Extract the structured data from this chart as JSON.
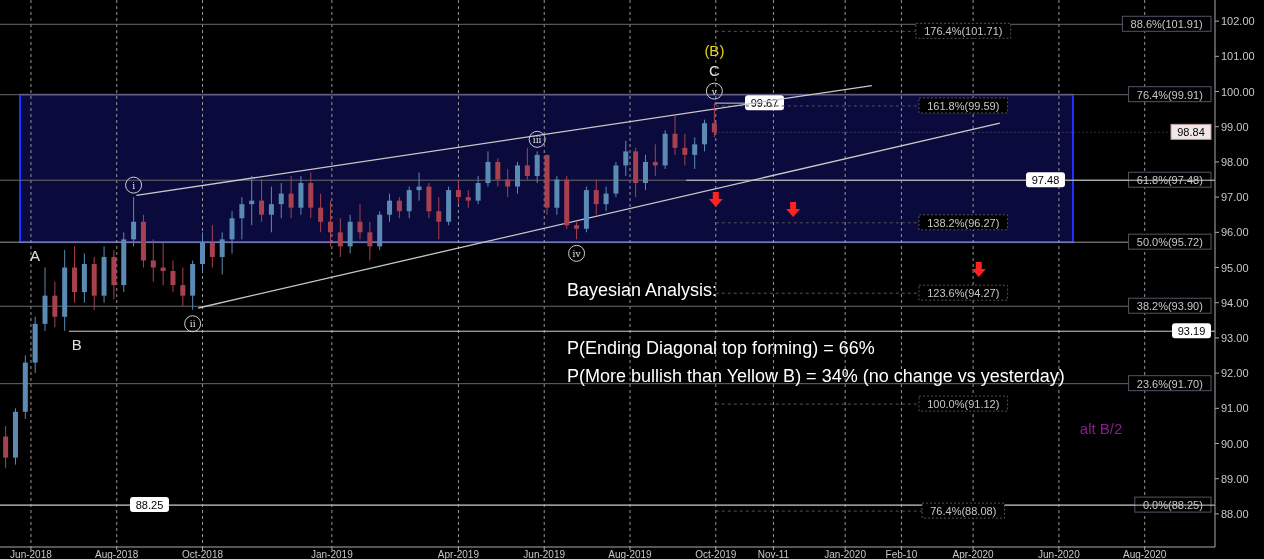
{
  "chart_data": {
    "type": "candlestick",
    "x": [
      "2018-05-14",
      "2018-05-21",
      "2018-05-28",
      "2018-06-04",
      "2018-06-11",
      "2018-06-18",
      "2018-06-25",
      "2018-07-02",
      "2018-07-09",
      "2018-07-16",
      "2018-07-23",
      "2018-07-30",
      "2018-08-06",
      "2018-08-13",
      "2018-08-20",
      "2018-08-27",
      "2018-09-03",
      "2018-09-10",
      "2018-09-17",
      "2018-09-24",
      "2018-10-01",
      "2018-10-08",
      "2018-10-15",
      "2018-10-22",
      "2018-10-29",
      "2018-11-05",
      "2018-11-12",
      "2018-11-19",
      "2018-11-26",
      "2018-12-03",
      "2018-12-10",
      "2018-12-17",
      "2018-12-24",
      "2018-12-31",
      "2019-01-07",
      "2019-01-14",
      "2019-01-21",
      "2019-01-28",
      "2019-02-04",
      "2019-02-11",
      "2019-02-18",
      "2019-02-25",
      "2019-03-04",
      "2019-03-11",
      "2019-03-18",
      "2019-03-25",
      "2019-04-01",
      "2019-04-08",
      "2019-04-15",
      "2019-04-22",
      "2019-04-29",
      "2019-05-06",
      "2019-05-13",
      "2019-05-20",
      "2019-05-27",
      "2019-06-03",
      "2019-06-10",
      "2019-06-17",
      "2019-06-24",
      "2019-07-01",
      "2019-07-08",
      "2019-07-15",
      "2019-07-22",
      "2019-07-29",
      "2019-08-05",
      "2019-08-12",
      "2019-08-19",
      "2019-08-26",
      "2019-09-02",
      "2019-09-09",
      "2019-09-16",
      "2019-09-23",
      "2019-09-30"
    ],
    "ohlc": [
      [
        90.2,
        90.5,
        89.3,
        89.6
      ],
      [
        89.6,
        91.0,
        89.4,
        90.9
      ],
      [
        90.9,
        92.5,
        90.7,
        92.3
      ],
      [
        92.3,
        93.6,
        92.0,
        93.4
      ],
      [
        93.4,
        95.0,
        93.2,
        94.2
      ],
      [
        94.2,
        94.6,
        93.3,
        93.6
      ],
      [
        93.6,
        95.5,
        93.2,
        95.0
      ],
      [
        95.0,
        95.6,
        94.0,
        94.3
      ],
      [
        94.3,
        95.4,
        94.0,
        95.1
      ],
      [
        95.1,
        95.3,
        93.8,
        94.2
      ],
      [
        94.2,
        95.6,
        94.0,
        95.3
      ],
      [
        95.3,
        95.5,
        94.1,
        94.5
      ],
      [
        94.5,
        96.0,
        94.3,
        95.8
      ],
      [
        95.8,
        97.0,
        95.6,
        96.3
      ],
      [
        96.3,
        96.5,
        95.0,
        95.2
      ],
      [
        95.2,
        95.8,
        94.6,
        95.0
      ],
      [
        95.0,
        95.7,
        94.5,
        94.9
      ],
      [
        94.9,
        95.2,
        94.3,
        94.5
      ],
      [
        94.5,
        95.0,
        93.9,
        94.2
      ],
      [
        94.2,
        95.2,
        93.8,
        95.1
      ],
      [
        95.1,
        96.0,
        94.9,
        95.7
      ],
      [
        95.7,
        96.2,
        95.0,
        95.3
      ],
      [
        95.3,
        96.0,
        94.8,
        95.8
      ],
      [
        95.8,
        96.6,
        95.4,
        96.4
      ],
      [
        96.4,
        97.0,
        95.8,
        96.8
      ],
      [
        96.8,
        97.6,
        96.2,
        96.9
      ],
      [
        96.9,
        97.5,
        96.3,
        96.5
      ],
      [
        96.5,
        97.3,
        96.0,
        96.8
      ],
      [
        96.8,
        97.4,
        96.4,
        97.1
      ],
      [
        97.1,
        97.6,
        96.4,
        96.7
      ],
      [
        96.7,
        97.6,
        96.5,
        97.4
      ],
      [
        97.4,
        97.7,
        96.4,
        96.7
      ],
      [
        96.7,
        97.1,
        96.0,
        96.3
      ],
      [
        96.3,
        96.9,
        95.6,
        96.0
      ],
      [
        96.0,
        96.4,
        95.3,
        95.6
      ],
      [
        95.6,
        96.5,
        95.4,
        96.3
      ],
      [
        96.3,
        96.8,
        95.8,
        96.0
      ],
      [
        96.0,
        96.3,
        95.2,
        95.6
      ],
      [
        95.6,
        96.6,
        95.5,
        96.5
      ],
      [
        96.5,
        97.1,
        96.3,
        96.9
      ],
      [
        96.9,
        97.0,
        96.4,
        96.6
      ],
      [
        96.6,
        97.3,
        96.4,
        97.2
      ],
      [
        97.2,
        97.7,
        96.9,
        97.3
      ],
      [
        97.3,
        97.4,
        96.4,
        96.6
      ],
      [
        96.6,
        97.0,
        95.8,
        96.3
      ],
      [
        96.3,
        97.3,
        96.2,
        97.2
      ],
      [
        97.2,
        97.5,
        96.8,
        97.0
      ],
      [
        97.0,
        97.2,
        96.7,
        96.9
      ],
      [
        96.9,
        97.6,
        96.8,
        97.4
      ],
      [
        97.4,
        98.3,
        97.3,
        98.0
      ],
      [
        98.0,
        98.1,
        97.3,
        97.5
      ],
      [
        97.5,
        97.8,
        97.0,
        97.3
      ],
      [
        97.3,
        98.0,
        97.1,
        97.9
      ],
      [
        97.9,
        98.4,
        97.5,
        97.6
      ],
      [
        97.6,
        98.3,
        97.4,
        98.2
      ],
      [
        98.2,
        98.2,
        96.5,
        96.7
      ],
      [
        96.7,
        97.6,
        96.5,
        97.5
      ],
      [
        97.5,
        97.6,
        96.1,
        96.2
      ],
      [
        96.2,
        96.3,
        95.8,
        96.1
      ],
      [
        96.1,
        97.3,
        96.0,
        97.2
      ],
      [
        97.2,
        97.5,
        96.5,
        96.8
      ],
      [
        96.8,
        97.3,
        96.6,
        97.1
      ],
      [
        97.1,
        98.0,
        97.0,
        97.9
      ],
      [
        97.9,
        98.6,
        97.6,
        98.3
      ],
      [
        98.3,
        98.4,
        97.0,
        97.4
      ],
      [
        97.4,
        98.2,
        97.2,
        98.0
      ],
      [
        98.0,
        98.5,
        97.6,
        97.9
      ],
      [
        97.9,
        98.9,
        97.8,
        98.8
      ],
      [
        98.8,
        99.3,
        98.2,
        98.4
      ],
      [
        98.4,
        98.8,
        97.9,
        98.2
      ],
      [
        98.2,
        98.7,
        97.8,
        98.5
      ],
      [
        98.5,
        99.2,
        98.3,
        99.1
      ],
      [
        99.1,
        99.67,
        98.7,
        98.84
      ]
    ],
    "series": [
      {
        "type": "line",
        "color": "#c8c8c8",
        "x": [
          "2018-08-15",
          "2020-01-20"
        ],
        "values": [
          97.05,
          100.17
        ]
      },
      {
        "type": "line",
        "color": "#c8c8c8",
        "x": [
          "2018-09-28",
          "2020-04-20"
        ],
        "values": [
          93.85,
          99.1
        ]
      }
    ],
    "xlim": [
      "2018-05-10",
      "2020-09-20"
    ],
    "xticks": [
      {
        "value": "2018-06-01",
        "label": "Jun-2018"
      },
      {
        "value": "2018-08-01",
        "label": "Aug-2018"
      },
      {
        "value": "2018-10-01",
        "label": "Oct-2018"
      },
      {
        "value": "2019-01-01",
        "label": "Jan-2019"
      },
      {
        "value": "2019-04-01",
        "label": "Apr-2019"
      },
      {
        "value": "2019-06-01",
        "label": "Jun-2019"
      },
      {
        "value": "2019-08-01",
        "label": "Aug-2019"
      },
      {
        "value": "2019-10-01",
        "label": "Oct-2019"
      },
      {
        "value": "2019-11-11",
        "label": "Nov-11"
      },
      {
        "value": "2020-01-01",
        "label": "Jan-2020"
      },
      {
        "value": "2020-02-10",
        "label": "Feb-10"
      },
      {
        "value": "2020-04-01",
        "label": "Apr-2020"
      },
      {
        "value": "2020-06-01",
        "label": "Jun-2020"
      },
      {
        "value": "2020-08-01",
        "label": "Aug-2020"
      }
    ],
    "ylim": [
      87.06,
      102.6
    ],
    "yticks": [
      {
        "value": 88,
        "label": "88.00"
      },
      {
        "value": 89,
        "label": "89.00"
      },
      {
        "value": 90,
        "label": "90.00"
      },
      {
        "value": 91,
        "label": "91.00"
      },
      {
        "value": 92,
        "label": "92.00"
      },
      {
        "value": 93,
        "label": "93.00"
      },
      {
        "value": 94,
        "label": "94.00"
      },
      {
        "value": 95,
        "label": "95.00"
      },
      {
        "value": 96,
        "label": "96.00"
      },
      {
        "value": 97,
        "label": "97.00"
      },
      {
        "value": 98,
        "label": "98.00"
      },
      {
        "value": 99,
        "label": "99.00"
      },
      {
        "value": 100,
        "label": "100.00"
      },
      {
        "value": 101,
        "label": "101.00"
      },
      {
        "value": 102,
        "label": "102.00"
      }
    ],
    "grid": "x",
    "bands": [
      {
        "axis": "y",
        "from": 95.72,
        "to": 99.91,
        "color": "#0a0a3c"
      }
    ],
    "ref_lines": [
      {
        "axis": "y",
        "value": 101.91,
        "label": "88.6%(101.91)",
        "color": "#6a6a6a"
      },
      {
        "axis": "y",
        "value": 99.91,
        "label": "76.4%(99.91)",
        "color": "#6a6a6a"
      },
      {
        "axis": "y",
        "value": 97.48,
        "label": "61.8%(97.48)",
        "color": "#6a6a6a"
      },
      {
        "axis": "y",
        "value": 95.72,
        "label": "50.0%(95.72)",
        "color": "#9a9a9a"
      },
      {
        "axis": "y",
        "value": 93.9,
        "label": "38.2%(93.90)",
        "color": "#6a6a6a"
      },
      {
        "axis": "y",
        "value": 93.19,
        "label": "93.19",
        "color": "#d0d0d0"
      },
      {
        "axis": "y",
        "value": 91.7,
        "label": "23.6%(91.70)",
        "color": "#6a6a6a"
      },
      {
        "axis": "y",
        "value": 88.25,
        "label": "0.0%(88.25)",
        "color": "#6a6a6a"
      },
      {
        "axis": "y",
        "value": 88.25,
        "label": "88.25",
        "color": "#d0d0d0"
      },
      {
        "axis": "y",
        "value": 99.67,
        "label": "99.67",
        "color": "#d0d0d0"
      },
      {
        "axis": "y",
        "value": 97.48,
        "label": "97.48",
        "color": "#d0d0d0"
      },
      {
        "axis": "y",
        "value": 101.71,
        "label": "176.4%(101.71)",
        "color": "#555555",
        "line_style": "dashed"
      },
      {
        "axis": "y",
        "value": 99.59,
        "label": "161.8%(99.59)",
        "color": "#555555",
        "line_style": "dashed"
      },
      {
        "axis": "y",
        "value": 96.27,
        "label": "138.2%(96.27)",
        "color": "#555555",
        "line_style": "dashed"
      },
      {
        "axis": "y",
        "value": 94.27,
        "label": "123.6%(94.27)",
        "color": "#555555",
        "line_style": "dashed"
      },
      {
        "axis": "y",
        "value": 91.12,
        "label": "100.0%(91.12)",
        "color": "#555555",
        "line_style": "dashed"
      },
      {
        "axis": "y",
        "value": 88.08,
        "label": "76.4%(88.08)",
        "color": "#555555",
        "line_style": "dashed"
      },
      {
        "axis": "y",
        "value": 98.84,
        "label": "98.84",
        "color": "#f0e8e8",
        "line_style": "dotted"
      }
    ],
    "annotations": [
      "Bayesian Analysis:",
      "P(Ending Diagonal top forming) = 66%",
      "P(More bullish than Yellow B) = 34% (no change vs yesterday)",
      "alt B/2",
      {
        "text": "A",
        "x": "2018-06-11",
        "y": 95.0
      },
      {
        "text": "B",
        "x": "2018-06-25",
        "y": 93.2
      },
      {
        "text": "i",
        "x": "2018-08-13",
        "y": 97.0
      },
      {
        "text": "ii",
        "x": "2018-09-24",
        "y": 93.8
      },
      {
        "text": "iii",
        "x": "2019-05-27",
        "y": 98.3
      },
      {
        "text": "iv",
        "x": "2019-06-24",
        "y": 95.8
      },
      {
        "text": "v",
        "x": "2019-09-30",
        "y": 99.67
      },
      {
        "text": "C",
        "x": "2019-09-30",
        "y": 99.67
      },
      {
        "text": "(B)",
        "x": "2019-09-30",
        "y": 99.67
      }
    ]
  }
}
